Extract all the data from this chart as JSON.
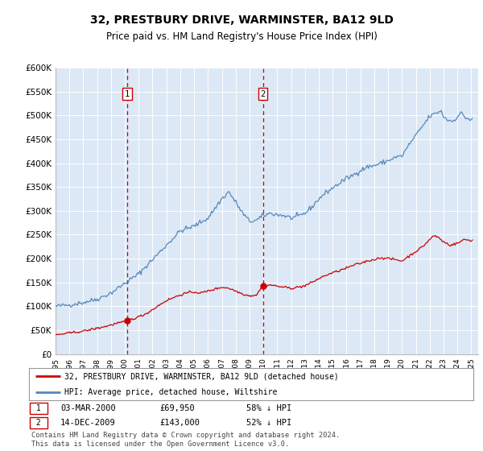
{
  "title": "32, PRESTBURY DRIVE, WARMINSTER, BA12 9LD",
  "subtitle": "Price paid vs. HM Land Registry's House Price Index (HPI)",
  "plot_bg_color": "#dce8f5",
  "ylim": [
    0,
    600000
  ],
  "yticks": [
    0,
    50000,
    100000,
    150000,
    200000,
    250000,
    300000,
    350000,
    400000,
    450000,
    500000,
    550000,
    600000
  ],
  "ytick_labels": [
    "£0",
    "£50K",
    "£100K",
    "£150K",
    "£200K",
    "£250K",
    "£300K",
    "£350K",
    "£400K",
    "£450K",
    "£500K",
    "£550K",
    "£600K"
  ],
  "sale1_date_num": 2000.17,
  "sale1_price": 69950,
  "sale1_label": "1",
  "sale1_date_str": "03-MAR-2000",
  "sale1_price_str": "£69,950",
  "sale1_pct": "58% ↓ HPI",
  "sale2_date_num": 2009.96,
  "sale2_price": 143000,
  "sale2_label": "2",
  "sale2_date_str": "14-DEC-2009",
  "sale2_price_str": "£143,000",
  "sale2_pct": "52% ↓ HPI",
  "red_line_color": "#cc0000",
  "blue_line_color": "#5588bb",
  "vline_color": "#cc0000",
  "legend_label_red": "32, PRESTBURY DRIVE, WARMINSTER, BA12 9LD (detached house)",
  "legend_label_blue": "HPI: Average price, detached house, Wiltshire",
  "footer": "Contains HM Land Registry data © Crown copyright and database right 2024.\nThis data is licensed under the Open Government Licence v3.0.",
  "xmin": 1995.0,
  "xmax": 2025.5
}
